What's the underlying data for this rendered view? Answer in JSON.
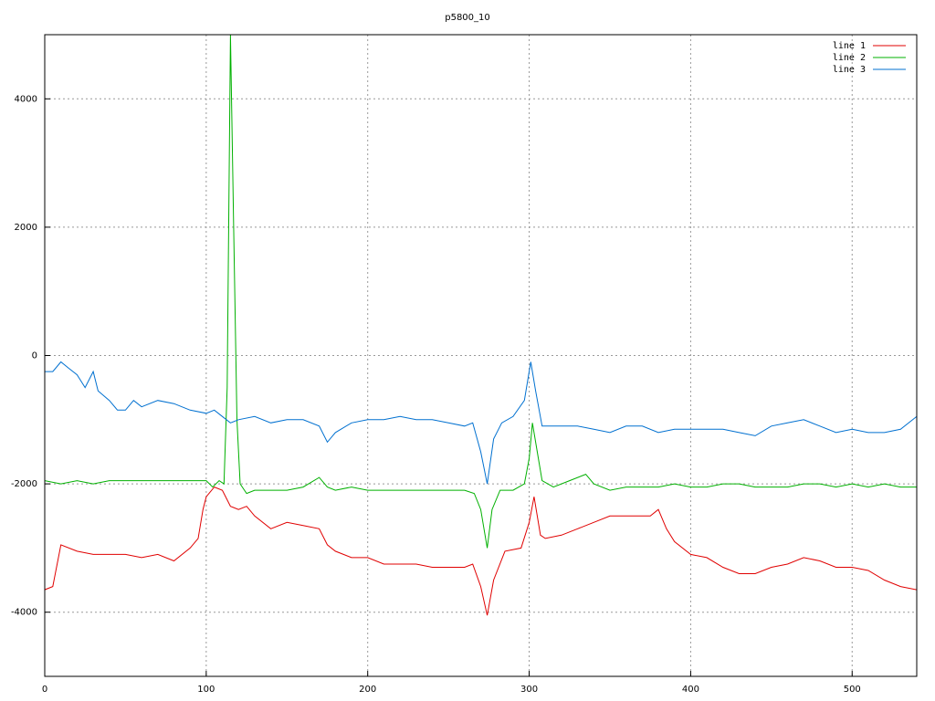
{
  "chart_data": {
    "type": "line",
    "title": "p5800_10",
    "xlim": [
      0,
      540
    ],
    "ylim": [
      -5000,
      5000
    ],
    "xticks": [
      0,
      100,
      200,
      300,
      400,
      500
    ],
    "yticks": [
      -4000,
      -2000,
      0,
      2000,
      4000
    ],
    "grid": true,
    "legend": "top-right",
    "series": [
      {
        "name": "line 1",
        "color": "#e00000",
        "x": [
          0,
          5,
          10,
          20,
          30,
          40,
          50,
          60,
          70,
          80,
          90,
          95,
          98,
          100,
          105,
          110,
          115,
          120,
          125,
          130,
          140,
          150,
          160,
          170,
          175,
          180,
          190,
          200,
          210,
          220,
          230,
          240,
          250,
          260,
          265,
          270,
          274,
          278,
          285,
          295,
          300,
          303,
          307,
          310,
          320,
          330,
          340,
          350,
          360,
          370,
          375,
          380,
          385,
          390,
          400,
          410,
          420,
          430,
          440,
          450,
          460,
          470,
          480,
          490,
          500,
          510,
          520,
          530,
          540
        ],
        "values": [
          -3650,
          -3600,
          -2950,
          -3050,
          -3100,
          -3100,
          -3100,
          -3150,
          -3100,
          -3200,
          -3000,
          -2850,
          -2400,
          -2200,
          -2050,
          -2100,
          -2350,
          -2400,
          -2350,
          -2500,
          -2700,
          -2600,
          -2650,
          -2700,
          -2950,
          -3050,
          -3150,
          -3150,
          -3250,
          -3250,
          -3250,
          -3300,
          -3300,
          -3300,
          -3250,
          -3600,
          -4050,
          -3500,
          -3050,
          -3000,
          -2600,
          -2200,
          -2800,
          -2850,
          -2800,
          -2700,
          -2600,
          -2500,
          -2500,
          -2500,
          -2500,
          -2400,
          -2700,
          -2900,
          -3100,
          -3150,
          -3300,
          -3400,
          -3400,
          -3300,
          -3250,
          -3150,
          -3200,
          -3300,
          -3300,
          -3350,
          -3500,
          -3600,
          -3650
        ]
      },
      {
        "name": "line 2",
        "color": "#00b000",
        "x": [
          0,
          10,
          20,
          30,
          40,
          50,
          60,
          70,
          80,
          90,
          100,
          104,
          108,
          111,
          113,
          115,
          117,
          119,
          121,
          125,
          130,
          140,
          150,
          160,
          170,
          175,
          180,
          190,
          200,
          210,
          220,
          230,
          240,
          250,
          260,
          266,
          270,
          274,
          277,
          282,
          290,
          297,
          300,
          302,
          305,
          308,
          315,
          325,
          335,
          340,
          350,
          360,
          370,
          380,
          390,
          400,
          410,
          420,
          430,
          440,
          450,
          460,
          470,
          480,
          490,
          500,
          510,
          520,
          530,
          540
        ],
        "values": [
          -1950,
          -2000,
          -1950,
          -2000,
          -1950,
          -1950,
          -1950,
          -1950,
          -1950,
          -1950,
          -1950,
          -2050,
          -1950,
          -2000,
          -500,
          5000,
          2000,
          -1000,
          -2000,
          -2150,
          -2100,
          -2100,
          -2100,
          -2050,
          -1900,
          -2050,
          -2100,
          -2050,
          -2100,
          -2100,
          -2100,
          -2100,
          -2100,
          -2100,
          -2100,
          -2150,
          -2400,
          -3000,
          -2400,
          -2100,
          -2100,
          -2000,
          -1600,
          -1050,
          -1500,
          -1950,
          -2050,
          -1950,
          -1850,
          -2000,
          -2100,
          -2050,
          -2050,
          -2050,
          -2000,
          -2050,
          -2050,
          -2000,
          -2000,
          -2050,
          -2050,
          -2050,
          -2000,
          -2000,
          -2050,
          -2000,
          -2050,
          -2000,
          -2050,
          -2050
        ]
      },
      {
        "name": "line 3",
        "color": "#0070d0",
        "x": [
          0,
          5,
          10,
          15,
          20,
          25,
          30,
          33,
          40,
          45,
          50,
          55,
          60,
          70,
          80,
          90,
          100,
          105,
          110,
          115,
          120,
          130,
          140,
          150,
          160,
          170,
          175,
          180,
          190,
          200,
          210,
          220,
          230,
          240,
          250,
          260,
          265,
          270,
          274,
          278,
          283,
          290,
          297,
          301,
          304,
          308,
          315,
          320,
          330,
          340,
          350,
          360,
          370,
          380,
          390,
          400,
          410,
          420,
          430,
          440,
          450,
          460,
          470,
          480,
          490,
          500,
          510,
          520,
          530,
          540
        ],
        "values": [
          -250,
          -250,
          -100,
          -200,
          -300,
          -500,
          -250,
          -550,
          -700,
          -850,
          -850,
          -700,
          -800,
          -700,
          -750,
          -850,
          -900,
          -850,
          -950,
          -1050,
          -1000,
          -950,
          -1050,
          -1000,
          -1000,
          -1100,
          -1350,
          -1200,
          -1050,
          -1000,
          -1000,
          -950,
          -1000,
          -1000,
          -1050,
          -1100,
          -1050,
          -1500,
          -2000,
          -1300,
          -1050,
          -950,
          -700,
          -100,
          -550,
          -1100,
          -1100,
          -1100,
          -1100,
          -1150,
          -1200,
          -1100,
          -1100,
          -1200,
          -1150,
          -1150,
          -1150,
          -1150,
          -1200,
          -1250,
          -1100,
          -1050,
          -1000,
          -1100,
          -1200,
          -1150,
          -1200,
          -1200,
          -1150,
          -950
        ]
      }
    ]
  }
}
